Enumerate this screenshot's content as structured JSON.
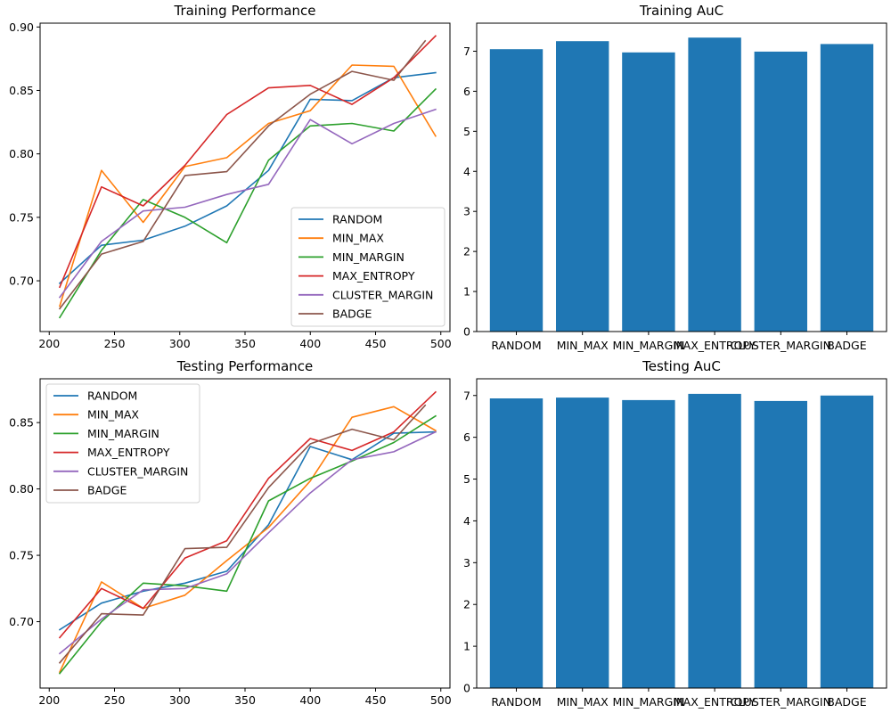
{
  "chart_data": [
    {
      "type": "line",
      "title": "Training Performance",
      "xlabel": "",
      "ylabel": "",
      "xlim": [
        193,
        507
      ],
      "ylim": [
        0.66,
        0.903
      ],
      "xticks": [
        200,
        250,
        300,
        350,
        400,
        450,
        500
      ],
      "yticks": [
        0.7,
        0.75,
        0.8,
        0.85,
        0.9
      ],
      "ytick_decimals": 2,
      "legend": "lower-right",
      "series": [
        {
          "name": "RANDOM",
          "color": "#1f77b4",
          "x": [
            208,
            240,
            272,
            304,
            336,
            368,
            400,
            432,
            464,
            496
          ],
          "y": [
            0.698,
            0.728,
            0.732,
            0.743,
            0.759,
            0.787,
            0.843,
            0.842,
            0.86,
            0.864
          ]
        },
        {
          "name": "MIN_MAX",
          "color": "#ff7f0e",
          "x": [
            208,
            240,
            272,
            304,
            336,
            368,
            400,
            432,
            464,
            496
          ],
          "y": [
            0.68,
            0.787,
            0.746,
            0.79,
            0.797,
            0.824,
            0.834,
            0.87,
            0.869,
            0.814
          ]
        },
        {
          "name": "MIN_MARGIN",
          "color": "#2ca02c",
          "x": [
            208,
            240,
            272,
            304,
            336,
            368,
            400,
            432,
            464,
            496
          ],
          "y": [
            0.671,
            0.724,
            0.764,
            0.75,
            0.73,
            0.795,
            0.822,
            0.824,
            0.818,
            0.851
          ]
        },
        {
          "name": "MAX_ENTROPY",
          "color": "#d62728",
          "x": [
            208,
            240,
            272,
            304,
            336,
            368,
            400,
            432,
            464,
            496
          ],
          "y": [
            0.695,
            0.774,
            0.759,
            0.791,
            0.831,
            0.852,
            0.854,
            0.839,
            0.86,
            0.893
          ]
        },
        {
          "name": "CLUSTER_MARGIN",
          "color": "#9467bd",
          "x": [
            208,
            240,
            272,
            304,
            336,
            368,
            400,
            432,
            464,
            496
          ],
          "y": [
            0.687,
            0.731,
            0.755,
            0.758,
            0.768,
            0.776,
            0.827,
            0.808,
            0.824,
            0.835
          ]
        },
        {
          "name": "BADGE",
          "color": "#8c564b",
          "x": [
            208,
            240,
            272,
            304,
            336,
            368,
            400,
            432,
            464,
            488
          ],
          "y": [
            0.678,
            0.721,
            0.731,
            0.783,
            0.786,
            0.822,
            0.847,
            0.865,
            0.858,
            0.889
          ]
        }
      ]
    },
    {
      "type": "bar",
      "title": "Training AuC",
      "xlabel": "",
      "ylabel": "",
      "ylim": [
        0,
        7.7
      ],
      "yticks": [
        0,
        1,
        2,
        3,
        4,
        5,
        6,
        7
      ],
      "ytick_decimals": 0,
      "color": "#1f77b4",
      "categories": [
        "RANDOM",
        "MIN_MAX",
        "MIN_MARGIN",
        "MAX_ENTROPY",
        "CLUSTER_MARGIN",
        "BADGE"
      ],
      "values": [
        7.05,
        7.25,
        6.97,
        7.34,
        6.99,
        7.18
      ]
    },
    {
      "type": "line",
      "title": "Testing Performance",
      "xlabel": "",
      "ylabel": "",
      "xlim": [
        193,
        507
      ],
      "ylim": [
        0.65,
        0.883
      ],
      "xticks": [
        200,
        250,
        300,
        350,
        400,
        450,
        500
      ],
      "yticks": [
        0.7,
        0.75,
        0.8,
        0.85
      ],
      "ytick_decimals": 2,
      "legend": "upper-left",
      "series": [
        {
          "name": "RANDOM",
          "color": "#1f77b4",
          "x": [
            208,
            240,
            272,
            304,
            336,
            368,
            400,
            432,
            464,
            496
          ],
          "y": [
            0.694,
            0.714,
            0.723,
            0.729,
            0.738,
            0.773,
            0.832,
            0.822,
            0.842,
            0.843
          ]
        },
        {
          "name": "MIN_MAX",
          "color": "#ff7f0e",
          "x": [
            208,
            240,
            272,
            304,
            336,
            368,
            400,
            432,
            464,
            496
          ],
          "y": [
            0.662,
            0.73,
            0.71,
            0.72,
            0.746,
            0.771,
            0.806,
            0.854,
            0.862,
            0.844
          ]
        },
        {
          "name": "MIN_MARGIN",
          "color": "#2ca02c",
          "x": [
            208,
            240,
            272,
            304,
            336,
            368,
            400,
            432,
            464,
            496
          ],
          "y": [
            0.661,
            0.7,
            0.729,
            0.727,
            0.723,
            0.791,
            0.808,
            0.821,
            0.835,
            0.855
          ]
        },
        {
          "name": "MAX_ENTROPY",
          "color": "#d62728",
          "x": [
            208,
            240,
            272,
            304,
            336,
            368,
            400,
            432,
            464,
            496
          ],
          "y": [
            0.688,
            0.725,
            0.71,
            0.748,
            0.761,
            0.808,
            0.838,
            0.829,
            0.843,
            0.873
          ]
        },
        {
          "name": "CLUSTER_MARGIN",
          "color": "#9467bd",
          "x": [
            208,
            240,
            272,
            304,
            336,
            368,
            400,
            432,
            464,
            496
          ],
          "y": [
            0.676,
            0.702,
            0.724,
            0.725,
            0.736,
            0.767,
            0.797,
            0.822,
            0.828,
            0.843
          ]
        },
        {
          "name": "BADGE",
          "color": "#8c564b",
          "x": [
            208,
            240,
            272,
            304,
            336,
            368,
            400,
            432,
            464,
            488
          ],
          "y": [
            0.669,
            0.706,
            0.705,
            0.755,
            0.756,
            0.801,
            0.834,
            0.845,
            0.837,
            0.863
          ]
        }
      ]
    },
    {
      "type": "bar",
      "title": "Testing AuC",
      "xlabel": "",
      "ylabel": "",
      "ylim": [
        0,
        7.4
      ],
      "yticks": [
        0,
        1,
        2,
        3,
        4,
        5,
        6,
        7
      ],
      "ytick_decimals": 0,
      "color": "#1f77b4",
      "categories": [
        "RANDOM",
        "MIN_MAX",
        "MIN_MARGIN",
        "MAX_ENTROPY",
        "CLUSTER_MARGIN",
        "BADGE"
      ],
      "values": [
        6.93,
        6.95,
        6.89,
        7.04,
        6.87,
        7.0
      ]
    }
  ]
}
